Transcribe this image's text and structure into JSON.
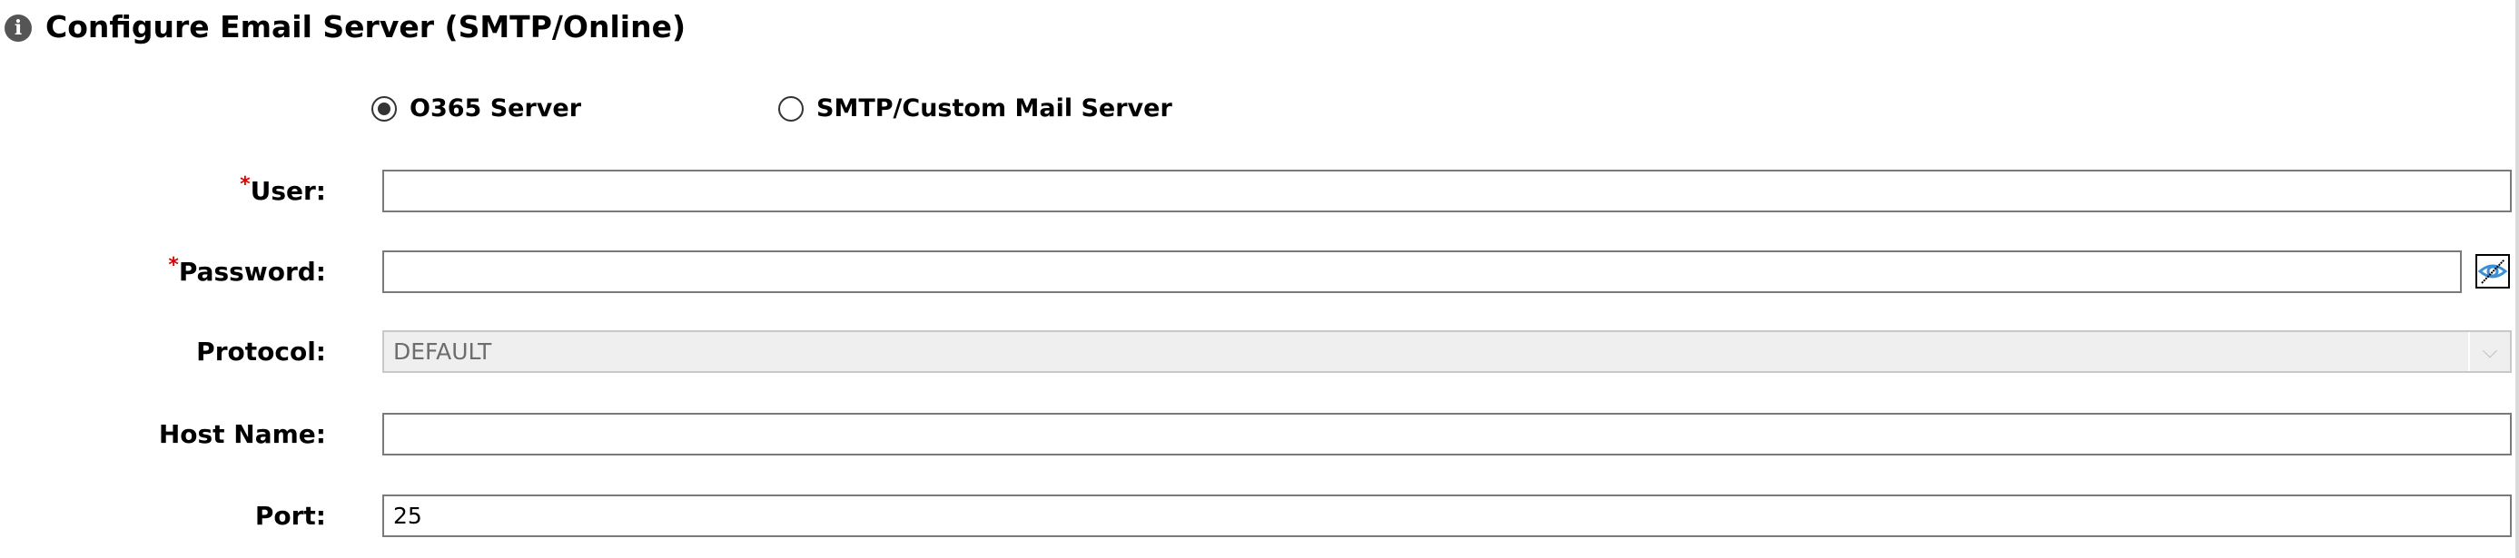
{
  "header": {
    "title": "Configure Email Server (SMTP/Online)",
    "icon": "info-icon"
  },
  "server_type": {
    "options": [
      {
        "label": "O365 Server",
        "selected": true
      },
      {
        "label": "SMTP/Custom Mail Server",
        "selected": false
      }
    ]
  },
  "form": {
    "user": {
      "label": "User:",
      "required_mark": "*",
      "value": ""
    },
    "password": {
      "label": "Password:",
      "required_mark": "*",
      "value": "",
      "toggle_icon": "eye-slash-icon"
    },
    "protocol": {
      "label": "Protocol:",
      "value": "DEFAULT",
      "disabled": true
    },
    "host": {
      "label": "Host Name:",
      "value": ""
    },
    "port": {
      "label": "Port:",
      "value": "25"
    }
  },
  "colors": {
    "required": "#e00000",
    "eye_icon": "#3a8fd6"
  }
}
